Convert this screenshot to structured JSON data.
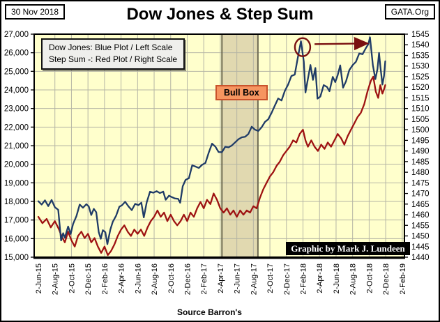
{
  "header": {
    "date_label": "30 Nov 2018",
    "title": "Dow Jones & Step Sum",
    "brand_label": "GATA.Org"
  },
  "legend": {
    "line1": "Dow Jones: Blue Plot / Left Scale",
    "line2": "Step Sum -: Red Plot / Right Scale"
  },
  "annotations": {
    "bull_box_label": "Bull Box",
    "watermark": "Graphic by Mark J. Lundeen"
  },
  "footer": {
    "source": "Source Barron's"
  },
  "colors": {
    "plot_bg": "#ffffcc",
    "grid": "#b5b5a5",
    "dow_blue": "#1f3b67",
    "step_red": "#9e1212",
    "bull_band": "#e1d9b0",
    "bull_band_edge": "#6f6b54",
    "annotation": "#7a1010",
    "border": "#000000"
  },
  "chart_data": {
    "type": "line",
    "title": "Dow Jones & Step Sum",
    "x_unit": "months since 2-Jun-2015 (one tick = 2 months)",
    "x_tick_labels": [
      "2-Jun-15",
      "2-Aug-15",
      "2-Oct-15",
      "2-Dec-15",
      "2-Feb-16",
      "2-Apr-16",
      "2-Jun-16",
      "2-Aug-16",
      "2-Oct-16",
      "2-Dec-16",
      "2-Feb-17",
      "2-Apr-17",
      "2-Jun-17",
      "2-Aug-17",
      "2-Oct-17",
      "2-Dec-17",
      "2-Feb-18",
      "2-Apr-18",
      "2-Jun-18",
      "2-Aug-18",
      "2-Oct-18",
      "2-Dec-18",
      "2-Feb-19"
    ],
    "left_axis": {
      "name": "Dow Jones",
      "min": 15000,
      "max": 27000,
      "tick_step": 1000,
      "tick_labels": [
        "27,000",
        "26,000",
        "25,000",
        "24,000",
        "23,000",
        "22,000",
        "21,000",
        "20,000",
        "19,000",
        "18,000",
        "17,000",
        "16,000",
        "15,000"
      ]
    },
    "right_axis": {
      "name": "Step Sum",
      "min": 1440,
      "max": 1545,
      "tick_step": 5,
      "tick_labels": [
        "1545",
        "1540",
        "1535",
        "1530",
        "1525",
        "1520",
        "1515",
        "1510",
        "1505",
        "1500",
        "1495",
        "1490",
        "1485",
        "1480",
        "1475",
        "1470",
        "1465",
        "1460",
        "1455",
        "1450",
        "1445",
        "1440"
      ]
    },
    "grid": true,
    "legend_position": "top-left",
    "bull_box": {
      "from_month": 22.2,
      "to_month": 26.55
    },
    "peak_annotation": {
      "circle_month": 31.95,
      "circle_value": 26300,
      "arrow_from_month": 33.4,
      "arrow_to_month": 39.6,
      "arrow_value": 26500
    },
    "series": [
      {
        "name": "Dow Jones",
        "axis": "left",
        "color_key": "dow_blue",
        "points": [
          [
            0,
            18010
          ],
          [
            0.4,
            17830
          ],
          [
            0.8,
            18060
          ],
          [
            1.2,
            17750
          ],
          [
            1.6,
            18080
          ],
          [
            2.0,
            17690
          ],
          [
            2.4,
            17550
          ],
          [
            2.75,
            15900
          ],
          [
            3.0,
            16290
          ],
          [
            3.2,
            16050
          ],
          [
            3.6,
            16650
          ],
          [
            3.9,
            16250
          ],
          [
            4.2,
            16790
          ],
          [
            4.6,
            17210
          ],
          [
            5.0,
            17830
          ],
          [
            5.4,
            17660
          ],
          [
            5.8,
            17850
          ],
          [
            6.1,
            17730
          ],
          [
            6.4,
            17270
          ],
          [
            6.7,
            17600
          ],
          [
            7.0,
            17420
          ],
          [
            7.3,
            16350
          ],
          [
            7.55,
            15990
          ],
          [
            7.8,
            16450
          ],
          [
            8.1,
            16340
          ],
          [
            8.35,
            15700
          ],
          [
            8.7,
            16480
          ],
          [
            9.0,
            16900
          ],
          [
            9.4,
            17230
          ],
          [
            9.8,
            17720
          ],
          [
            10.1,
            17790
          ],
          [
            10.5,
            17980
          ],
          [
            10.9,
            17730
          ],
          [
            11.3,
            17530
          ],
          [
            11.7,
            17870
          ],
          [
            12.1,
            17800
          ],
          [
            12.45,
            17930
          ],
          [
            12.75,
            17140
          ],
          [
            13.1,
            17950
          ],
          [
            13.5,
            18520
          ],
          [
            13.9,
            18470
          ],
          [
            14.3,
            18550
          ],
          [
            14.7,
            18450
          ],
          [
            15.1,
            18530
          ],
          [
            15.4,
            18090
          ],
          [
            15.8,
            18310
          ],
          [
            16.1,
            18240
          ],
          [
            16.5,
            18160
          ],
          [
            16.9,
            18140
          ],
          [
            17.15,
            17930
          ],
          [
            17.45,
            18810
          ],
          [
            17.8,
            19160
          ],
          [
            18.2,
            19250
          ],
          [
            18.6,
            19940
          ],
          [
            19.0,
            19880
          ],
          [
            19.4,
            19800
          ],
          [
            19.8,
            19970
          ],
          [
            20.2,
            20070
          ],
          [
            20.6,
            20620
          ],
          [
            21.0,
            21110
          ],
          [
            21.4,
            20950
          ],
          [
            21.8,
            20660
          ],
          [
            22.2,
            20650
          ],
          [
            22.6,
            20940
          ],
          [
            23.0,
            20910
          ],
          [
            23.4,
            21010
          ],
          [
            23.8,
            21180
          ],
          [
            24.2,
            21350
          ],
          [
            24.6,
            21450
          ],
          [
            25.0,
            21480
          ],
          [
            25.4,
            21630
          ],
          [
            25.8,
            22020
          ],
          [
            26.2,
            21860
          ],
          [
            26.6,
            21790
          ],
          [
            27.0,
            21990
          ],
          [
            27.4,
            22280
          ],
          [
            27.8,
            22420
          ],
          [
            28.2,
            22770
          ],
          [
            28.6,
            23160
          ],
          [
            29.0,
            23540
          ],
          [
            29.4,
            23430
          ],
          [
            29.8,
            23940
          ],
          [
            30.2,
            24290
          ],
          [
            30.6,
            24750
          ],
          [
            31.0,
            24820
          ],
          [
            31.4,
            25800
          ],
          [
            31.75,
            26620
          ],
          [
            32.1,
            25520
          ],
          [
            32.3,
            23860
          ],
          [
            32.6,
            24600
          ],
          [
            32.9,
            25340
          ],
          [
            33.2,
            24540
          ],
          [
            33.5,
            25180
          ],
          [
            33.75,
            23530
          ],
          [
            34.1,
            23640
          ],
          [
            34.5,
            24260
          ],
          [
            34.9,
            24160
          ],
          [
            35.2,
            23930
          ],
          [
            35.6,
            24700
          ],
          [
            35.9,
            24420
          ],
          [
            36.2,
            24800
          ],
          [
            36.5,
            25320
          ],
          [
            36.85,
            24120
          ],
          [
            37.2,
            24460
          ],
          [
            37.6,
            25060
          ],
          [
            38.0,
            25330
          ],
          [
            38.4,
            25510
          ],
          [
            38.8,
            25960
          ],
          [
            39.2,
            25920
          ],
          [
            39.6,
            26250
          ],
          [
            39.9,
            26460
          ],
          [
            40.1,
            26830
          ],
          [
            40.45,
            25340
          ],
          [
            40.75,
            24580
          ],
          [
            41.0,
            25120
          ],
          [
            41.2,
            25990
          ],
          [
            41.35,
            25290
          ],
          [
            41.6,
            24290
          ],
          [
            41.8,
            24750
          ],
          [
            41.95,
            25540
          ]
        ]
      },
      {
        "name": "Step Sum",
        "axis": "right",
        "color_key": "step_red",
        "points": [
          [
            0,
            1459
          ],
          [
            0.5,
            1456
          ],
          [
            1,
            1458
          ],
          [
            1.5,
            1454
          ],
          [
            2,
            1457
          ],
          [
            2.5,
            1453
          ],
          [
            2.8,
            1450
          ],
          [
            3.2,
            1447
          ],
          [
            3.6,
            1452
          ],
          [
            4,
            1448
          ],
          [
            4.4,
            1445
          ],
          [
            4.8,
            1450
          ],
          [
            5.2,
            1452
          ],
          [
            5.6,
            1449
          ],
          [
            6,
            1451
          ],
          [
            6.4,
            1447
          ],
          [
            6.8,
            1449
          ],
          [
            7.2,
            1445
          ],
          [
            7.6,
            1442
          ],
          [
            8,
            1445
          ],
          [
            8.4,
            1441
          ],
          [
            8.8,
            1443
          ],
          [
            9.2,
            1446
          ],
          [
            9.6,
            1450
          ],
          [
            10,
            1453
          ],
          [
            10.4,
            1455
          ],
          [
            10.8,
            1452
          ],
          [
            11.2,
            1450
          ],
          [
            11.6,
            1453
          ],
          [
            12,
            1451
          ],
          [
            12.4,
            1453
          ],
          [
            12.8,
            1450
          ],
          [
            13.2,
            1454
          ],
          [
            13.6,
            1457
          ],
          [
            14,
            1459
          ],
          [
            14.4,
            1462
          ],
          [
            14.8,
            1459
          ],
          [
            15.2,
            1461
          ],
          [
            15.6,
            1457
          ],
          [
            16,
            1460
          ],
          [
            16.4,
            1457
          ],
          [
            16.8,
            1455
          ],
          [
            17.2,
            1457
          ],
          [
            17.6,
            1460
          ],
          [
            18,
            1457
          ],
          [
            18.4,
            1461
          ],
          [
            18.8,
            1459
          ],
          [
            19.2,
            1463
          ],
          [
            19.6,
            1466
          ],
          [
            20,
            1463
          ],
          [
            20.4,
            1467
          ],
          [
            20.8,
            1465
          ],
          [
            21.2,
            1470
          ],
          [
            21.6,
            1467
          ],
          [
            22,
            1463
          ],
          [
            22.4,
            1461
          ],
          [
            22.8,
            1463
          ],
          [
            23.2,
            1460
          ],
          [
            23.6,
            1462
          ],
          [
            24,
            1459
          ],
          [
            24.4,
            1462
          ],
          [
            24.8,
            1460
          ],
          [
            25.2,
            1462
          ],
          [
            25.6,
            1461
          ],
          [
            26,
            1464
          ],
          [
            26.4,
            1463
          ],
          [
            26.8,
            1468
          ],
          [
            27.2,
            1472
          ],
          [
            27.6,
            1475
          ],
          [
            28,
            1478
          ],
          [
            28.4,
            1480
          ],
          [
            28.8,
            1483
          ],
          [
            29.2,
            1485
          ],
          [
            29.6,
            1488
          ],
          [
            30,
            1490
          ],
          [
            30.4,
            1492
          ],
          [
            30.8,
            1495
          ],
          [
            31.2,
            1494
          ],
          [
            31.6,
            1498
          ],
          [
            32,
            1500
          ],
          [
            32.3,
            1495
          ],
          [
            32.6,
            1492
          ],
          [
            33,
            1495
          ],
          [
            33.4,
            1492
          ],
          [
            33.8,
            1490
          ],
          [
            34.2,
            1493
          ],
          [
            34.6,
            1491
          ],
          [
            35,
            1494
          ],
          [
            35.4,
            1492
          ],
          [
            35.8,
            1495
          ],
          [
            36.2,
            1498
          ],
          [
            36.6,
            1496
          ],
          [
            37,
            1493
          ],
          [
            37.4,
            1497
          ],
          [
            37.8,
            1500
          ],
          [
            38.2,
            1503
          ],
          [
            38.6,
            1506
          ],
          [
            39,
            1508
          ],
          [
            39.4,
            1512
          ],
          [
            39.8,
            1518
          ],
          [
            40.2,
            1523
          ],
          [
            40.5,
            1525
          ],
          [
            40.8,
            1518
          ],
          [
            41.1,
            1515
          ],
          [
            41.35,
            1521
          ],
          [
            41.6,
            1517
          ],
          [
            41.8,
            1519
          ],
          [
            41.95,
            1521
          ]
        ]
      }
    ]
  }
}
